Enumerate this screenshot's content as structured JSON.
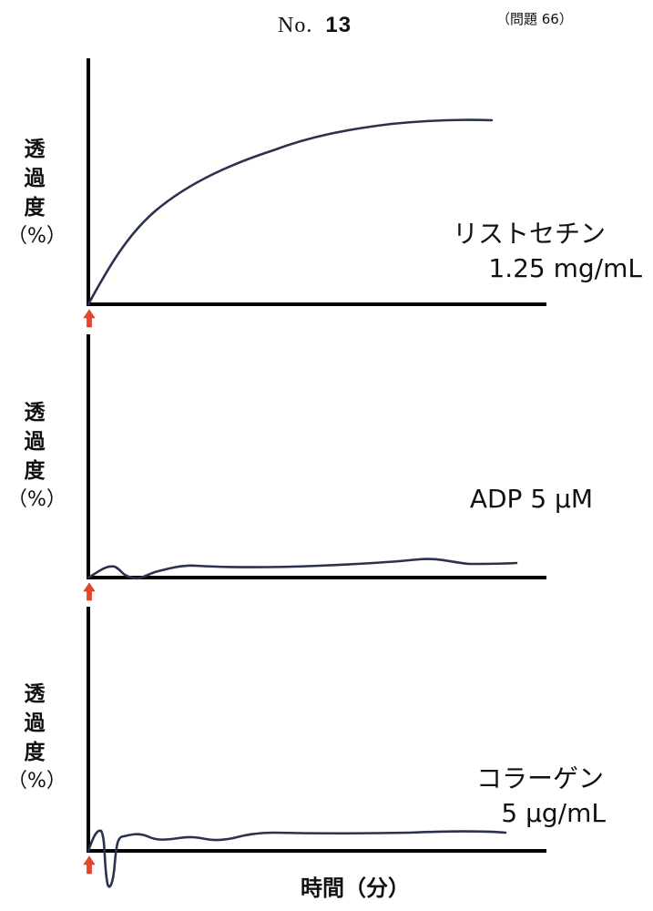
{
  "header": {
    "no_label": "No.",
    "no_value": "13",
    "question": "（問題 66）"
  },
  "chart_data": [
    {
      "type": "line",
      "ylabel": [
        "透",
        "過",
        "度",
        "（%）"
      ],
      "label_lines": [
        "リストセチン",
        "1.25 mg/mL"
      ],
      "trace": "ristocetin",
      "series": [
        {
          "x": [
            0,
            0.1,
            0.2,
            0.3,
            0.4,
            0.5,
            0.6,
            0.7,
            0.8,
            0.9
          ],
          "values": [
            0,
            0.32,
            0.5,
            0.62,
            0.72,
            0.8,
            0.86,
            0.9,
            0.92,
            0.92
          ]
        }
      ]
    },
    {
      "type": "line",
      "ylabel": [
        "透",
        "過",
        "度",
        "（%）"
      ],
      "label_lines": [
        "ADP  5 μM"
      ],
      "trace": "adp",
      "series": [
        {
          "x": [
            0,
            0.03,
            0.06,
            0.1,
            0.2,
            0.4,
            0.6,
            0.75,
            0.85,
            0.94
          ],
          "values": [
            0,
            0.05,
            0.02,
            0.03,
            0.05,
            0.04,
            0.06,
            0.08,
            0.06,
            0.06
          ]
        }
      ]
    },
    {
      "type": "line",
      "ylabel": [
        "透",
        "過",
        "度",
        "（%）"
      ],
      "label_lines": [
        "コラーゲン",
        "5 μg/mL"
      ],
      "trace": "collagen",
      "series": [
        {
          "x": [
            0,
            0.02,
            0.04,
            0.05,
            0.1,
            0.15,
            0.2,
            0.3,
            0.5,
            0.7,
            0.9
          ],
          "values": [
            0,
            0.1,
            -0.2,
            0.02,
            0.08,
            0.03,
            0.06,
            0.08,
            0.09,
            0.1,
            0.09
          ]
        }
      ]
    }
  ],
  "xlabel": "時間（分）",
  "colors": {
    "trace": "#2a3250",
    "axis": "#000000",
    "arrow": "#e8462c"
  }
}
